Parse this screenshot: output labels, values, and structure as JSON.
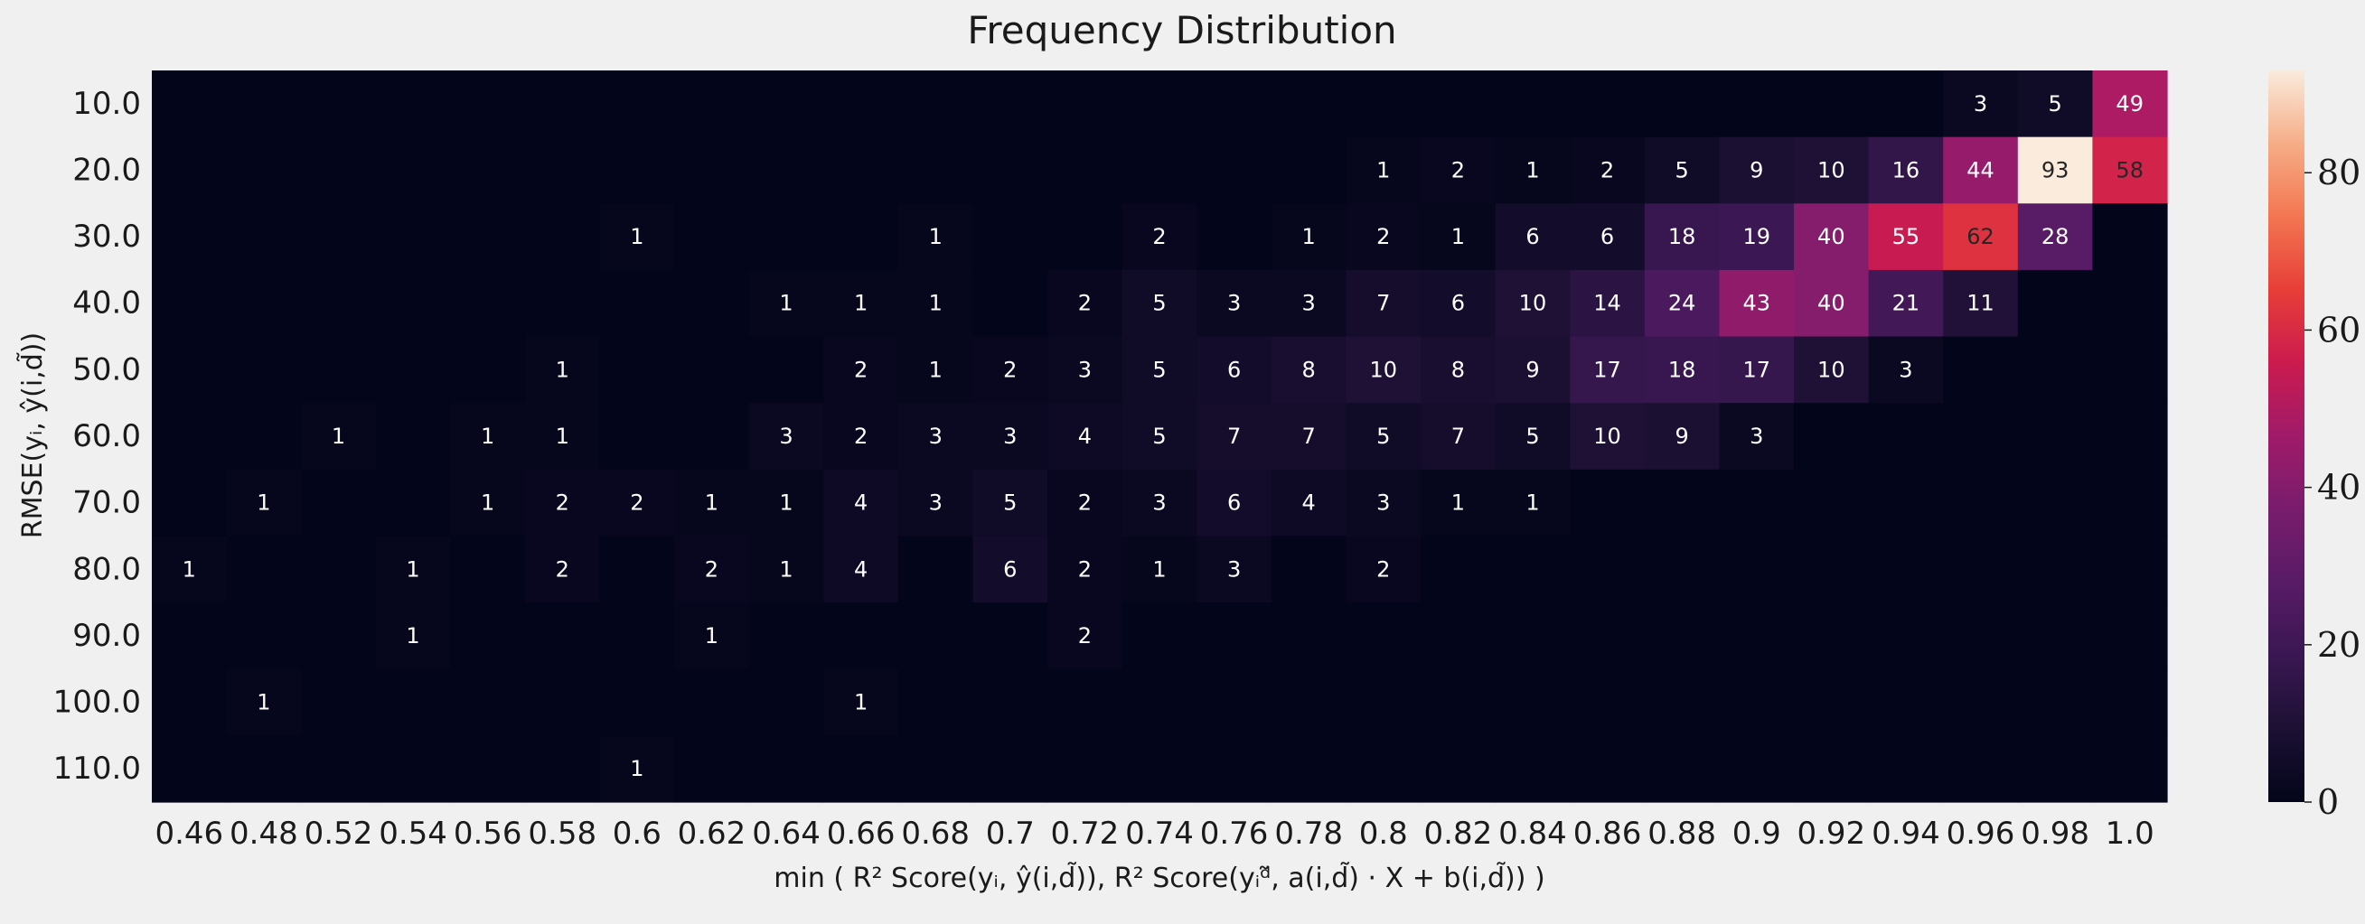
{
  "chart_data": {
    "type": "heatmap",
    "title": "Frequency Distribution",
    "xlabel": "min ( R² Score(yᵢ, ŷ(i,d̃)), R² Score(yᵢᵈ̃, a(i,d̃) · X + b(i,d̃)) )",
    "ylabel": "RMSE(yᵢ, ŷ(i,d̃))",
    "x_categories": [
      "0.46",
      "0.48",
      "0.52",
      "0.54",
      "0.56",
      "0.58",
      "0.6",
      "0.62",
      "0.64",
      "0.66",
      "0.68",
      "0.7",
      "0.72",
      "0.74",
      "0.76",
      "0.78",
      "0.8",
      "0.82",
      "0.84",
      "0.86",
      "0.88",
      "0.9",
      "0.92",
      "0.94",
      "0.96",
      "0.98",
      "1.0"
    ],
    "y_categories": [
      "10.0",
      "20.0",
      "30.0",
      "40.0",
      "50.0",
      "60.0",
      "70.0",
      "80.0",
      "90.0",
      "100.0",
      "110.0"
    ],
    "values": [
      [
        0,
        0,
        0,
        0,
        0,
        0,
        0,
        0,
        0,
        0,
        0,
        0,
        0,
        0,
        0,
        0,
        0,
        0,
        0,
        0,
        0,
        0,
        0,
        0,
        3,
        5,
        49
      ],
      [
        0,
        0,
        0,
        0,
        0,
        0,
        0,
        0,
        0,
        0,
        0,
        0,
        0,
        0,
        0,
        0,
        1,
        2,
        1,
        2,
        5,
        9,
        10,
        16,
        44,
        93,
        58
      ],
      [
        0,
        0,
        0,
        0,
        0,
        0,
        1,
        0,
        0,
        0,
        1,
        0,
        0,
        2,
        0,
        1,
        2,
        1,
        6,
        6,
        18,
        19,
        40,
        55,
        62,
        28,
        0
      ],
      [
        0,
        0,
        0,
        0,
        0,
        0,
        0,
        0,
        1,
        1,
        1,
        0,
        2,
        5,
        3,
        3,
        7,
        6,
        10,
        14,
        24,
        43,
        40,
        21,
        11,
        0,
        0
      ],
      [
        0,
        0,
        0,
        0,
        0,
        1,
        0,
        0,
        0,
        2,
        1,
        2,
        3,
        5,
        6,
        8,
        10,
        8,
        9,
        17,
        18,
        17,
        10,
        3,
        0,
        0,
        0
      ],
      [
        0,
        0,
        1,
        0,
        1,
        1,
        0,
        0,
        3,
        2,
        3,
        3,
        4,
        5,
        7,
        7,
        5,
        7,
        5,
        10,
        9,
        3,
        0,
        0,
        0,
        0,
        0
      ],
      [
        0,
        1,
        0,
        0,
        1,
        2,
        2,
        1,
        1,
        4,
        3,
        5,
        2,
        3,
        6,
        4,
        3,
        1,
        1,
        0,
        0,
        0,
        0,
        0,
        0,
        0,
        0
      ],
      [
        1,
        0,
        0,
        1,
        0,
        2,
        0,
        2,
        1,
        4,
        0,
        6,
        2,
        1,
        3,
        0,
        2,
        0,
        0,
        0,
        0,
        0,
        0,
        0,
        0,
        0,
        0
      ],
      [
        0,
        0,
        0,
        1,
        0,
        0,
        0,
        1,
        0,
        0,
        0,
        0,
        2,
        0,
        0,
        0,
        0,
        0,
        0,
        0,
        0,
        0,
        0,
        0,
        0,
        0,
        0
      ],
      [
        0,
        1,
        0,
        0,
        0,
        0,
        0,
        0,
        0,
        1,
        0,
        0,
        0,
        0,
        0,
        0,
        0,
        0,
        0,
        0,
        0,
        0,
        0,
        0,
        0,
        0,
        0
      ],
      [
        0,
        0,
        0,
        0,
        0,
        0,
        1,
        0,
        0,
        0,
        0,
        0,
        0,
        0,
        0,
        0,
        0,
        0,
        0,
        0,
        0,
        0,
        0,
        0,
        0,
        0,
        0
      ]
    ],
    "annotate_nonzero_only": true,
    "colormap": "rocket",
    "vmin": 0,
    "vmax": 93,
    "colorbar_ticks": [
      0,
      20,
      40,
      60,
      80
    ],
    "grid": false,
    "legend": "colorbar-right"
  }
}
